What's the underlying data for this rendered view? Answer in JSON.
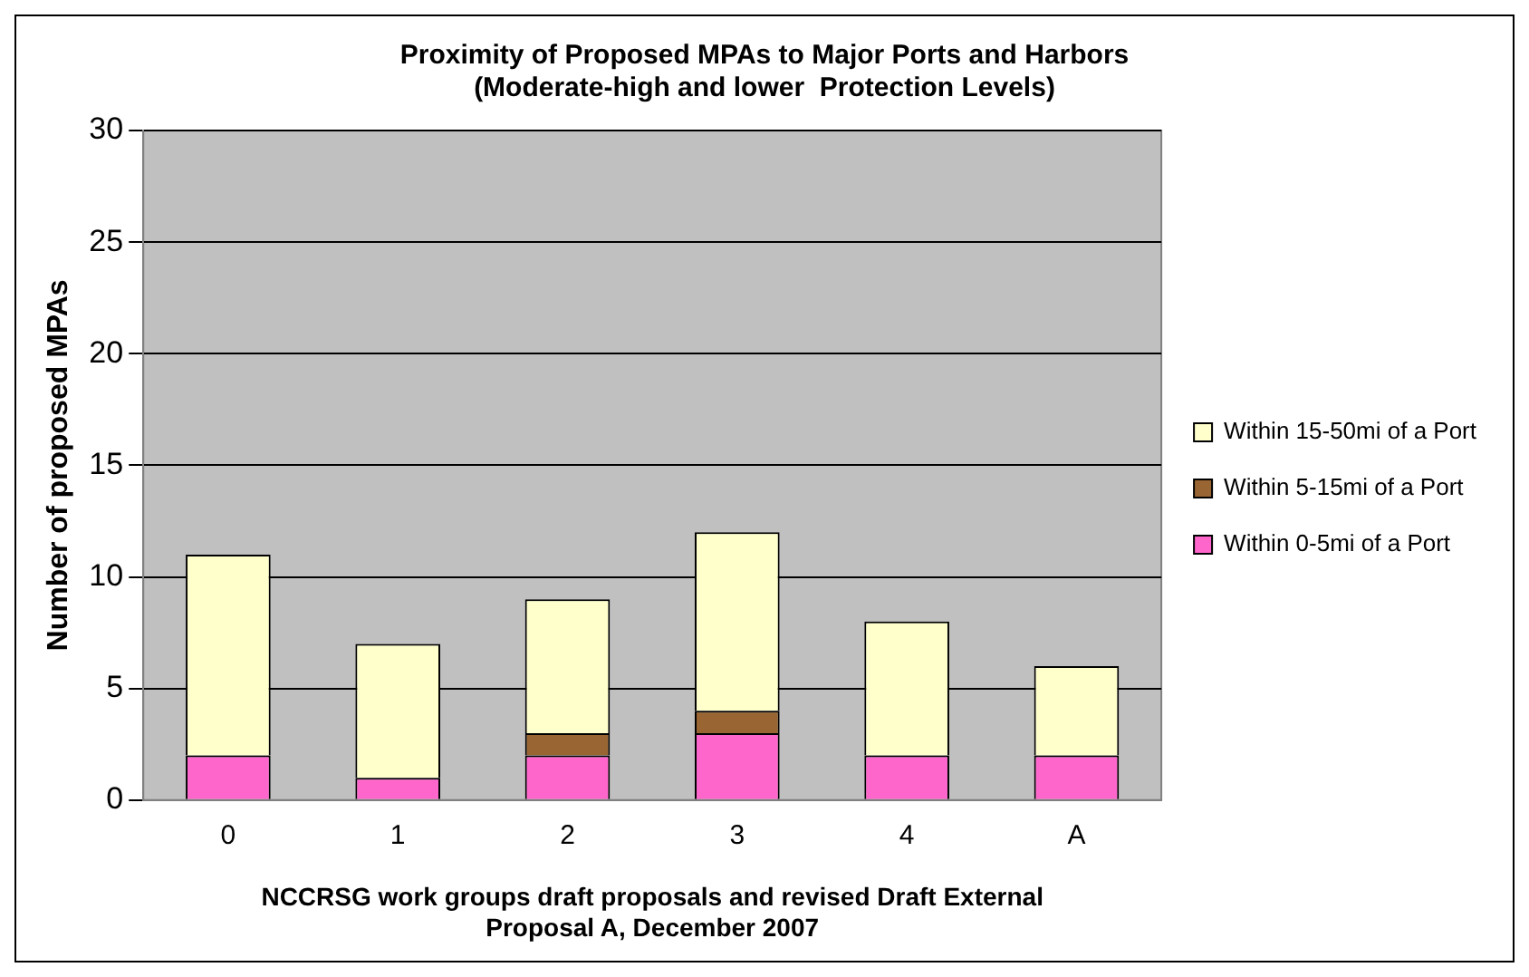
{
  "chart_data": {
    "type": "bar",
    "title": "Proximity of Proposed MPAs to Major Ports and Harbors\n(Moderate-high and lower  Protection Levels)",
    "xlabel": "NCCRSG work groups draft proposals and revised Draft External\nProposal A, December 2007",
    "ylabel": "Number of proposed MPAs",
    "categories": [
      "0",
      "1",
      "2",
      "3",
      "4",
      "A"
    ],
    "stacked": true,
    "series": [
      {
        "name": "Within 0-5mi of a Port",
        "color": "#ff66cc",
        "values": [
          2,
          1,
          2,
          3,
          2,
          2
        ]
      },
      {
        "name": "Within 5-15mi of a Port",
        "color": "#996633",
        "values": [
          0,
          0,
          1,
          1,
          0,
          0
        ]
      },
      {
        "name": "Within 15-50mi of a Port",
        "color": "#ffffcc",
        "values": [
          9,
          6,
          6,
          8,
          6,
          4
        ]
      }
    ],
    "ylim": [
      0,
      30
    ],
    "yticks": [
      0,
      5,
      10,
      15,
      20,
      25,
      30
    ],
    "grid": "y",
    "legend": "right"
  }
}
